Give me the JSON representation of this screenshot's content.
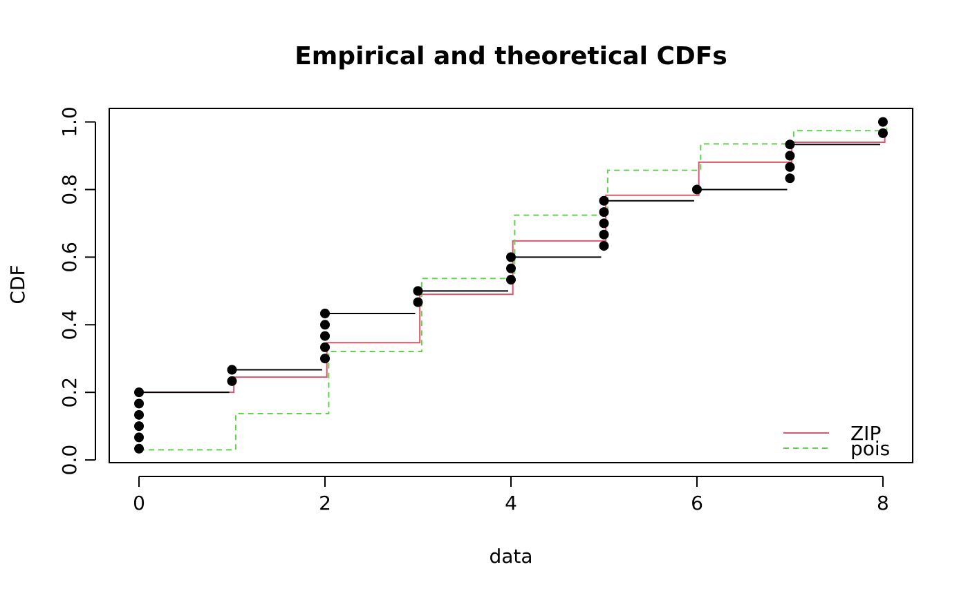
{
  "chart_data": {
    "type": "line",
    "title": "Empirical and theoretical CDFs",
    "xlabel": "data",
    "ylabel": "CDF",
    "xlim": [
      -0.32,
      8.32
    ],
    "ylim": [
      -0.008,
      1.04
    ],
    "x_ticks": [
      0,
      2,
      4,
      6,
      8
    ],
    "x_tick_labels": [
      "0",
      "2",
      "4",
      "6",
      "8"
    ],
    "y_ticks": [
      0.0,
      0.2,
      0.4,
      0.6,
      0.8,
      1.0
    ],
    "y_tick_labels": [
      "0.0",
      "0.2",
      "0.4",
      "0.6",
      "0.8",
      "1.0"
    ],
    "grid": false,
    "legend_position": "bottom-right",
    "empirical": {
      "points": [
        {
          "x": 0,
          "y": 0.0333
        },
        {
          "x": 0,
          "y": 0.0667
        },
        {
          "x": 0,
          "y": 0.1
        },
        {
          "x": 0,
          "y": 0.1333
        },
        {
          "x": 0,
          "y": 0.1667
        },
        {
          "x": 0,
          "y": 0.2
        },
        {
          "x": 1,
          "y": 0.2333
        },
        {
          "x": 1,
          "y": 0.2667
        },
        {
          "x": 2,
          "y": 0.3
        },
        {
          "x": 2,
          "y": 0.3333
        },
        {
          "x": 2,
          "y": 0.3667
        },
        {
          "x": 2,
          "y": 0.4
        },
        {
          "x": 2,
          "y": 0.4333
        },
        {
          "x": 3,
          "y": 0.4667
        },
        {
          "x": 3,
          "y": 0.5
        },
        {
          "x": 4,
          "y": 0.5333
        },
        {
          "x": 4,
          "y": 0.5667
        },
        {
          "x": 4,
          "y": 0.6
        },
        {
          "x": 5,
          "y": 0.6333
        },
        {
          "x": 5,
          "y": 0.6667
        },
        {
          "x": 5,
          "y": 0.7
        },
        {
          "x": 5,
          "y": 0.7333
        },
        {
          "x": 5,
          "y": 0.7667
        },
        {
          "x": 6,
          "y": 0.8
        },
        {
          "x": 7,
          "y": 0.8333
        },
        {
          "x": 7,
          "y": 0.8667
        },
        {
          "x": 7,
          "y": 0.9
        },
        {
          "x": 7,
          "y": 0.9333
        },
        {
          "x": 8,
          "y": 0.9667
        },
        {
          "x": 8,
          "y": 1.0
        }
      ],
      "steps": [
        {
          "x0": 0,
          "x1": 1,
          "y": 0.2
        },
        {
          "x0": 1,
          "x1": 2,
          "y": 0.2667
        },
        {
          "x0": 2,
          "x1": 3,
          "y": 0.4333
        },
        {
          "x0": 3,
          "x1": 4,
          "y": 0.5
        },
        {
          "x0": 4,
          "x1": 5,
          "y": 0.6
        },
        {
          "x0": 5,
          "x1": 6,
          "y": 0.7667
        },
        {
          "x0": 6,
          "x1": 7,
          "y": 0.8
        },
        {
          "x0": 7,
          "x1": 8,
          "y": 0.9333
        }
      ],
      "color": "#000000"
    },
    "series": [
      {
        "name": "ZIP",
        "color": "#DF536B",
        "dash": "solid",
        "x": [
          0,
          1,
          2,
          3,
          4,
          5,
          6,
          7,
          8
        ],
        "values": [
          0.2,
          0.245,
          0.347,
          0.49,
          0.648,
          0.783,
          0.881,
          0.94,
          0.965
        ]
      },
      {
        "name": "pois",
        "color": "#61D04F",
        "dash": "dashed",
        "x": [
          0,
          1,
          2,
          3,
          4,
          5,
          6,
          7,
          8
        ],
        "values": [
          0.03,
          0.137,
          0.321,
          0.537,
          0.724,
          0.857,
          0.935,
          0.974,
          0.99
        ]
      }
    ]
  }
}
